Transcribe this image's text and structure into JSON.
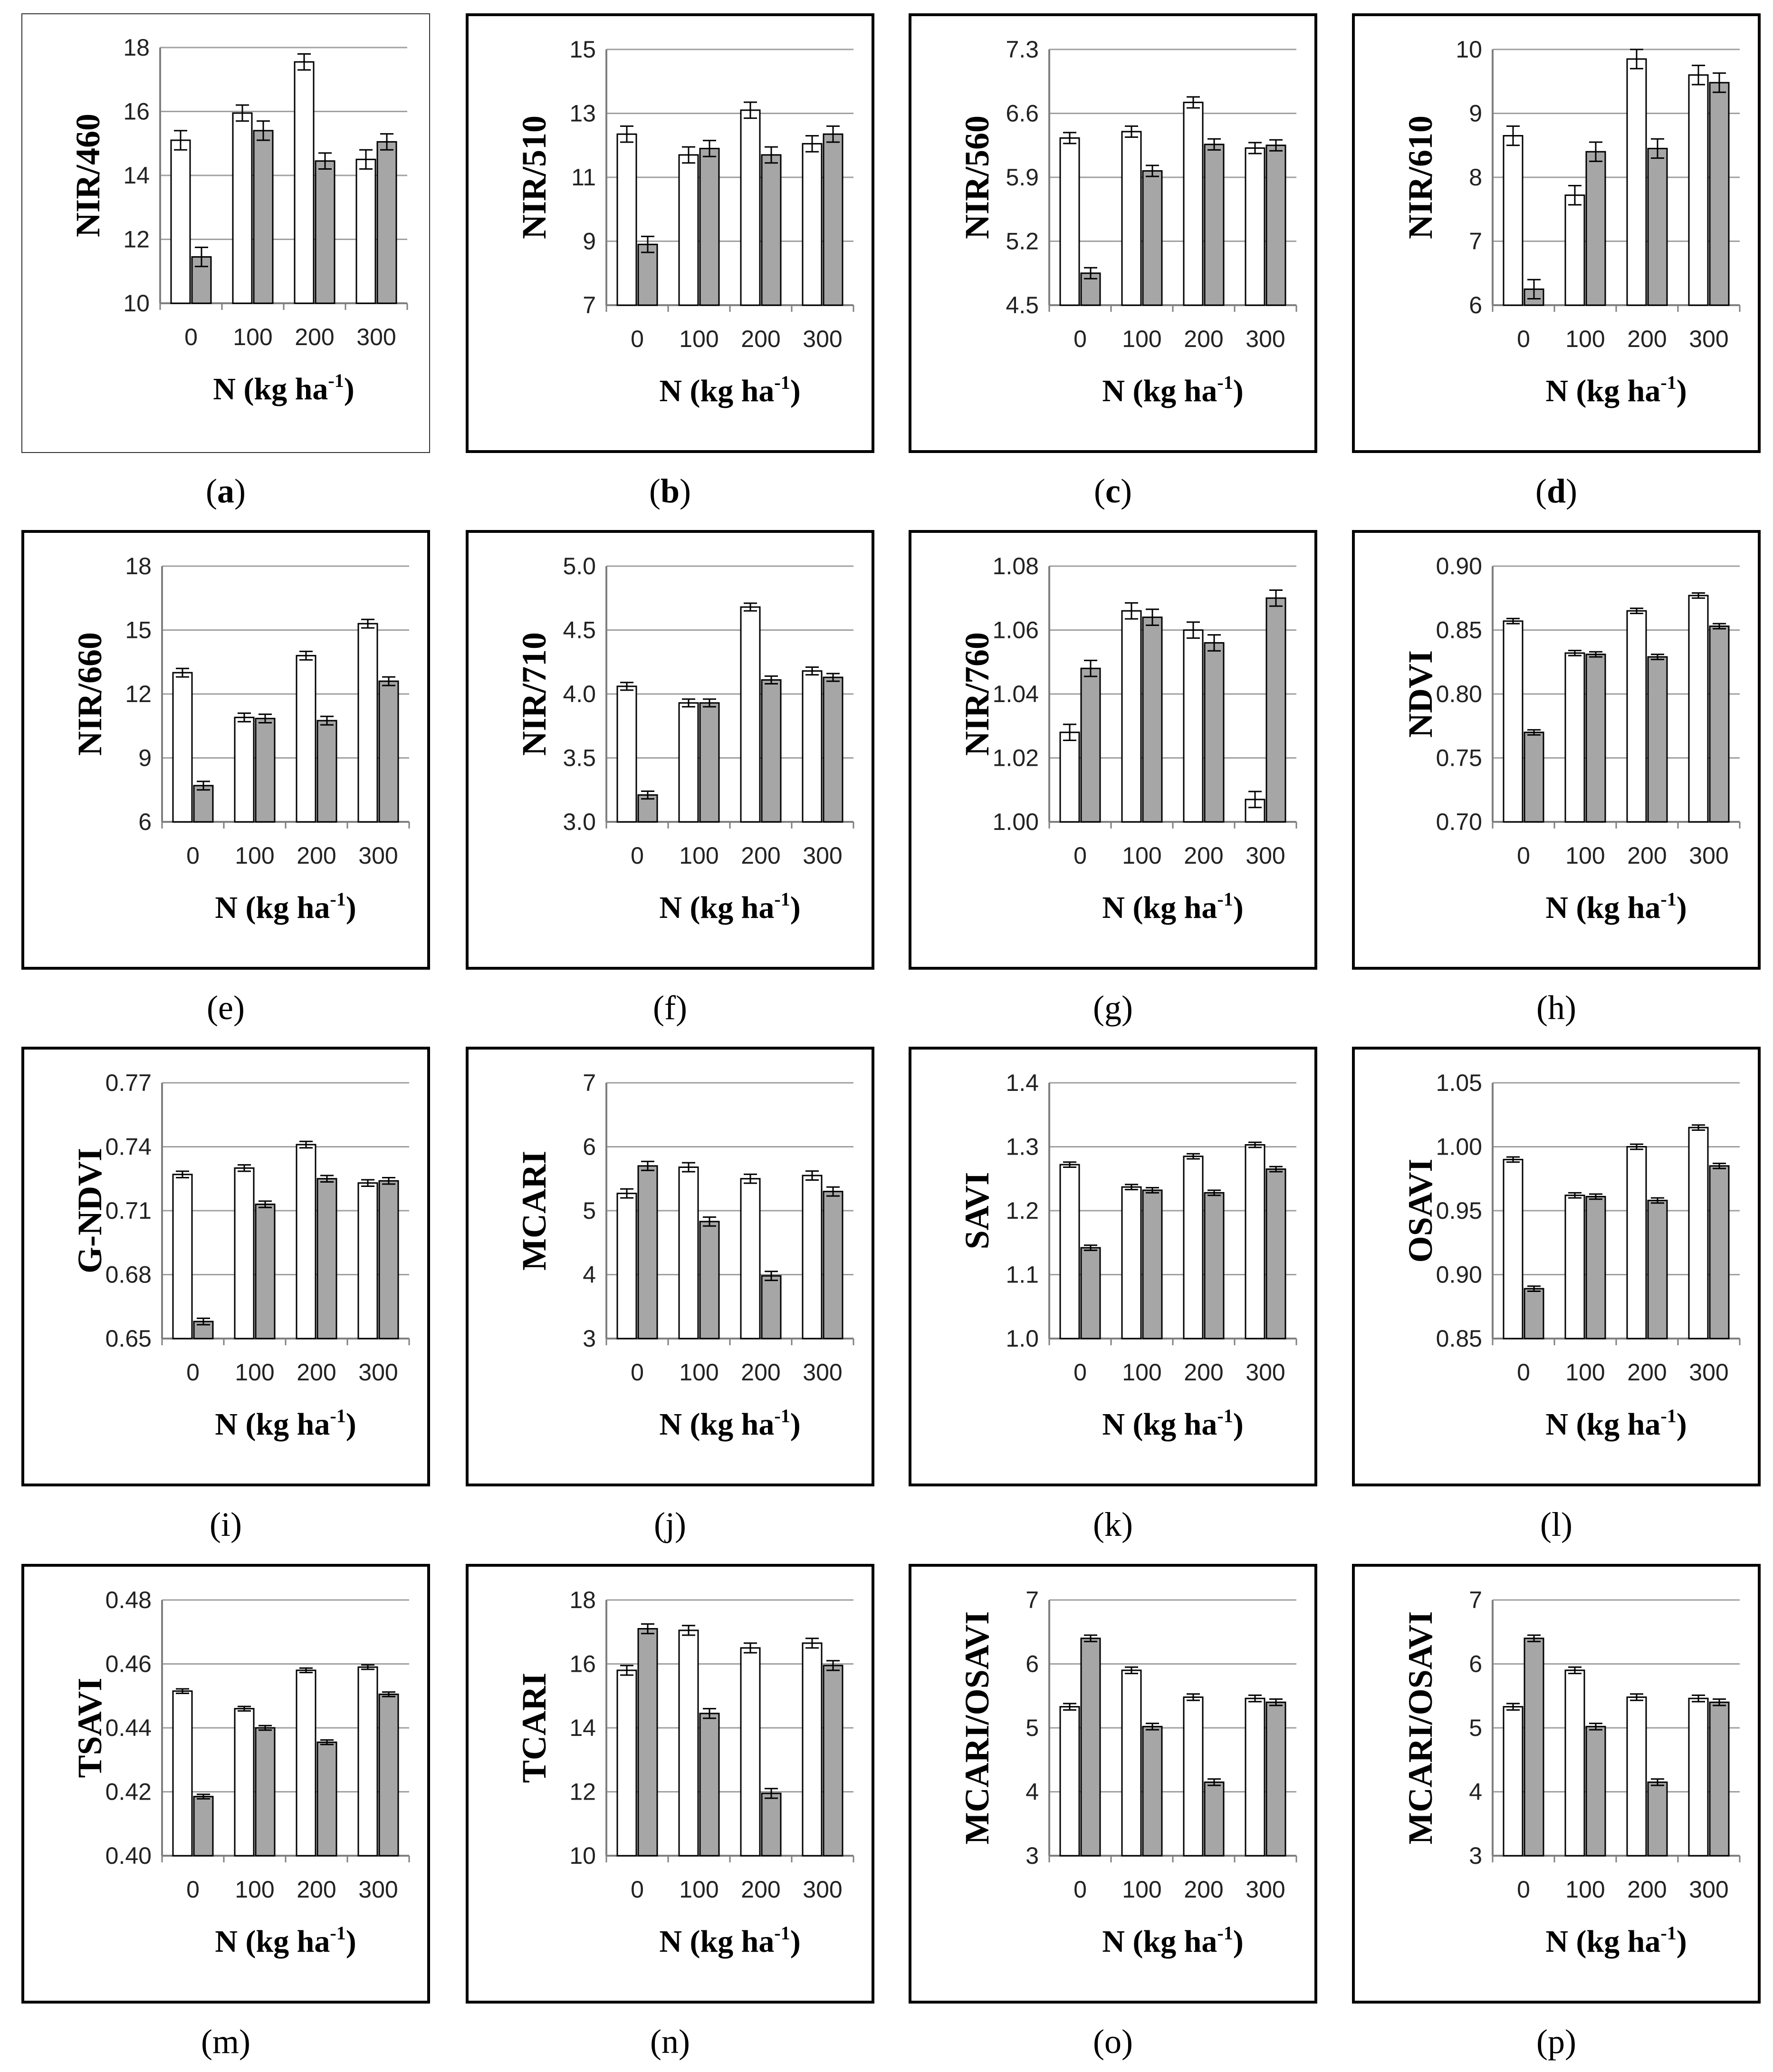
{
  "chart_data": [
    {
      "id": "a",
      "type": "bar",
      "caption": "a",
      "caption_bold": true,
      "thin_frame": true,
      "ylabel": "NIR/460",
      "xlabel": "N (kg ha",
      "xlabel_sup": "-1",
      "xlabel_close": ")",
      "categories": [
        "0",
        "100",
        "200",
        "300"
      ],
      "yticks": [
        "10",
        "12",
        "14",
        "16",
        "18"
      ],
      "ylim": [
        10,
        18
      ],
      "series": [
        {
          "name": "white",
          "color": "#ffffff",
          "values": [
            15.1,
            15.95,
            17.55,
            14.5
          ],
          "errors": [
            0.3,
            0.25,
            0.25,
            0.3
          ]
        },
        {
          "name": "gray",
          "color": "#a6a6a6",
          "values": [
            11.45,
            15.4,
            14.45,
            15.05
          ],
          "errors": [
            0.3,
            0.3,
            0.25,
            0.25
          ]
        }
      ]
    },
    {
      "id": "b",
      "type": "bar",
      "caption": "b",
      "caption_bold": true,
      "thin_frame": false,
      "ylabel": "NIR/510",
      "xlabel": "N (kg ha",
      "xlabel_sup": "-1",
      "xlabel_close": ")",
      "categories": [
        "0",
        "100",
        "200",
        "300"
      ],
      "yticks": [
        "7",
        "9",
        "11",
        "13",
        "15"
      ],
      "ylim": [
        7,
        15
      ],
      "series": [
        {
          "name": "white",
          "color": "#ffffff",
          "values": [
            12.35,
            11.7,
            13.1,
            12.05
          ],
          "errors": [
            0.25,
            0.25,
            0.25,
            0.25
          ]
        },
        {
          "name": "gray",
          "color": "#a6a6a6",
          "values": [
            8.9,
            11.9,
            11.7,
            12.35
          ],
          "errors": [
            0.25,
            0.25,
            0.25,
            0.25
          ]
        }
      ]
    },
    {
      "id": "c",
      "type": "bar",
      "caption": "c",
      "caption_bold": true,
      "thin_frame": false,
      "ylabel": "NIR/560",
      "xlabel": "N (kg ha",
      "xlabel_sup": "-1",
      "xlabel_close": ")",
      "categories": [
        "0",
        "100",
        "200",
        "300"
      ],
      "yticks": [
        "4.5",
        "5.2",
        "5.9",
        "6.6",
        "7.3"
      ],
      "ylim": [
        4.5,
        7.3
      ],
      "series": [
        {
          "name": "white",
          "color": "#ffffff",
          "values": [
            6.33,
            6.4,
            6.72,
            6.22
          ],
          "errors": [
            0.06,
            0.06,
            0.06,
            0.06
          ]
        },
        {
          "name": "gray",
          "color": "#a6a6a6",
          "values": [
            4.85,
            5.97,
            6.26,
            6.25
          ],
          "errors": [
            0.06,
            0.06,
            0.06,
            0.06
          ]
        }
      ]
    },
    {
      "id": "d",
      "type": "bar",
      "caption": "d",
      "caption_bold": true,
      "thin_frame": false,
      "ylabel": "NIR/610",
      "xlabel": "N (kg ha",
      "xlabel_sup": "-1",
      "xlabel_close": ")",
      "categories": [
        "0",
        "100",
        "200",
        "300"
      ],
      "yticks": [
        "6",
        "7",
        "8",
        "9",
        "10"
      ],
      "ylim": [
        6,
        10
      ],
      "series": [
        {
          "name": "white",
          "color": "#ffffff",
          "values": [
            8.65,
            7.72,
            9.85,
            9.6
          ],
          "errors": [
            0.15,
            0.15,
            0.15,
            0.15
          ]
        },
        {
          "name": "gray",
          "color": "#a6a6a6",
          "values": [
            6.25,
            8.4,
            8.45,
            9.48
          ],
          "errors": [
            0.15,
            0.15,
            0.15,
            0.15
          ]
        }
      ]
    },
    {
      "id": "e",
      "type": "bar",
      "caption": "e",
      "caption_bold": false,
      "thin_frame": false,
      "ylabel": "NIR/660",
      "xlabel": "N (kg ha",
      "xlabel_sup": "-1",
      "xlabel_close": ")",
      "categories": [
        "0",
        "100",
        "200",
        "300"
      ],
      "yticks": [
        "6",
        "9",
        "12",
        "15",
        "18"
      ],
      "ylim": [
        6,
        18
      ],
      "series": [
        {
          "name": "white",
          "color": "#ffffff",
          "values": [
            13.0,
            10.9,
            13.8,
            15.3
          ],
          "errors": [
            0.2,
            0.2,
            0.2,
            0.2
          ]
        },
        {
          "name": "gray",
          "color": "#a6a6a6",
          "values": [
            7.7,
            10.85,
            10.75,
            12.6
          ],
          "errors": [
            0.2,
            0.2,
            0.2,
            0.2
          ]
        }
      ]
    },
    {
      "id": "f",
      "type": "bar",
      "caption": "f",
      "caption_bold": false,
      "thin_frame": false,
      "ylabel": "NIR/710",
      "xlabel": "N (kg ha",
      "xlabel_sup": "-1",
      "xlabel_close": ")",
      "categories": [
        "0",
        "100",
        "200",
        "300"
      ],
      "yticks": [
        "3.0",
        "3.5",
        "4.0",
        "4.5",
        "5.0"
      ],
      "ylim": [
        3,
        5
      ],
      "series": [
        {
          "name": "white",
          "color": "#ffffff",
          "values": [
            4.06,
            3.93,
            4.68,
            4.18
          ],
          "errors": [
            0.03,
            0.03,
            0.03,
            0.03
          ]
        },
        {
          "name": "gray",
          "color": "#a6a6a6",
          "values": [
            3.21,
            3.93,
            4.11,
            4.13
          ],
          "errors": [
            0.03,
            0.03,
            0.03,
            0.03
          ]
        }
      ]
    },
    {
      "id": "g",
      "type": "bar",
      "caption": "g",
      "caption_bold": false,
      "thin_frame": false,
      "ylabel": "NIR/760",
      "xlabel": "N (kg ha",
      "xlabel_sup": "-1",
      "xlabel_close": ")",
      "categories": [
        "0",
        "100",
        "200",
        "300"
      ],
      "yticks": [
        "1.00",
        "1.02",
        "1.04",
        "1.06",
        "1.08"
      ],
      "ylim": [
        1.0,
        1.08
      ],
      "series": [
        {
          "name": "white",
          "color": "#ffffff",
          "values": [
            1.028,
            1.066,
            1.06,
            1.007
          ],
          "errors": [
            0.0025,
            0.0025,
            0.0025,
            0.0025
          ]
        },
        {
          "name": "gray",
          "color": "#a6a6a6",
          "values": [
            1.048,
            1.064,
            1.056,
            1.07
          ],
          "errors": [
            0.0025,
            0.0025,
            0.0025,
            0.0025
          ]
        }
      ]
    },
    {
      "id": "h",
      "type": "bar",
      "caption": "h",
      "caption_bold": false,
      "thin_frame": false,
      "ylabel": "NDVI",
      "xlabel": "N (kg ha",
      "xlabel_sup": "-1",
      "xlabel_close": ")",
      "categories": [
        "0",
        "100",
        "200",
        "300"
      ],
      "yticks": [
        "0.70",
        "0.75",
        "0.80",
        "0.85",
        "0.90"
      ],
      "ylim": [
        0.7,
        0.9
      ],
      "series": [
        {
          "name": "white",
          "color": "#ffffff",
          "values": [
            0.857,
            0.832,
            0.865,
            0.877
          ],
          "errors": [
            0.002,
            0.002,
            0.002,
            0.002
          ]
        },
        {
          "name": "gray",
          "color": "#a6a6a6",
          "values": [
            0.77,
            0.831,
            0.829,
            0.853
          ],
          "errors": [
            0.002,
            0.002,
            0.002,
            0.002
          ]
        }
      ]
    },
    {
      "id": "i",
      "type": "bar",
      "caption": "i",
      "caption_bold": false,
      "thin_frame": false,
      "ylabel": "G-NDVI",
      "xlabel": "N (kg ha",
      "xlabel_sup": "-1",
      "xlabel_close": ")",
      "categories": [
        "0",
        "100",
        "200",
        "300"
      ],
      "yticks": [
        "0.65",
        "0.68",
        "0.71",
        "0.74",
        "0.77"
      ],
      "ylim": [
        0.65,
        0.77
      ],
      "series": [
        {
          "name": "white",
          "color": "#ffffff",
          "values": [
            0.727,
            0.73,
            0.741,
            0.723
          ],
          "errors": [
            0.0015,
            0.0015,
            0.0015,
            0.0015
          ]
        },
        {
          "name": "gray",
          "color": "#a6a6a6",
          "values": [
            0.658,
            0.713,
            0.725,
            0.724
          ],
          "errors": [
            0.0015,
            0.0015,
            0.0015,
            0.0015
          ]
        }
      ]
    },
    {
      "id": "j",
      "type": "bar",
      "caption": "j",
      "caption_bold": false,
      "thin_frame": false,
      "ylabel": "MCARI",
      "xlabel": "N (kg ha",
      "xlabel_sup": "-1",
      "xlabel_close": ")",
      "categories": [
        "0",
        "100",
        "200",
        "300"
      ],
      "yticks": [
        "3",
        "4",
        "5",
        "6",
        "7"
      ],
      "ylim": [
        3,
        7
      ],
      "series": [
        {
          "name": "white",
          "color": "#ffffff",
          "values": [
            5.27,
            5.68,
            5.5,
            5.55
          ],
          "errors": [
            0.07,
            0.07,
            0.07,
            0.07
          ]
        },
        {
          "name": "gray",
          "color": "#a6a6a6",
          "values": [
            5.7,
            4.83,
            3.98,
            5.3
          ],
          "errors": [
            0.07,
            0.07,
            0.07,
            0.07
          ]
        }
      ]
    },
    {
      "id": "k",
      "type": "bar",
      "caption": "k",
      "caption_bold": false,
      "thin_frame": false,
      "ylabel": "SAVI",
      "xlabel": "N (kg ha",
      "xlabel_sup": "-1",
      "xlabel_close": ")",
      "categories": [
        "0",
        "100",
        "200",
        "300"
      ],
      "yticks": [
        "1.0",
        "1.1",
        "1.2",
        "1.3",
        "1.4"
      ],
      "ylim": [
        1.0,
        1.4
      ],
      "series": [
        {
          "name": "white",
          "color": "#ffffff",
          "values": [
            1.272,
            1.237,
            1.285,
            1.303
          ],
          "errors": [
            0.004,
            0.004,
            0.004,
            0.004
          ]
        },
        {
          "name": "gray",
          "color": "#a6a6a6",
          "values": [
            1.142,
            1.232,
            1.228,
            1.265
          ],
          "errors": [
            0.004,
            0.004,
            0.004,
            0.004
          ]
        }
      ]
    },
    {
      "id": "l",
      "type": "bar",
      "caption": "l",
      "caption_bold": false,
      "thin_frame": false,
      "ylabel": "OSAVI",
      "xlabel": "N (kg ha",
      "xlabel_sup": "-1",
      "xlabel_close": ")",
      "categories": [
        "0",
        "100",
        "200",
        "300"
      ],
      "yticks": [
        "0.85",
        "0.90",
        "0.95",
        "1.00",
        "1.05"
      ],
      "ylim": [
        0.85,
        1.05
      ],
      "series": [
        {
          "name": "white",
          "color": "#ffffff",
          "values": [
            0.99,
            0.962,
            1.0,
            1.015
          ],
          "errors": [
            0.002,
            0.002,
            0.002,
            0.002
          ]
        },
        {
          "name": "gray",
          "color": "#a6a6a6",
          "values": [
            0.889,
            0.961,
            0.958,
            0.985
          ],
          "errors": [
            0.002,
            0.002,
            0.002,
            0.002
          ]
        }
      ]
    },
    {
      "id": "m",
      "type": "bar",
      "caption": "m",
      "caption_bold": false,
      "thin_frame": false,
      "ylabel": "TSAVI",
      "xlabel": "N (kg ha",
      "xlabel_sup": "-1",
      "xlabel_close": ")",
      "categories": [
        "0",
        "100",
        "200",
        "300"
      ],
      "yticks": [
        "0.40",
        "0.42",
        "0.44",
        "0.46",
        "0.48"
      ],
      "ylim": [
        0.4,
        0.48
      ],
      "series": [
        {
          "name": "white",
          "color": "#ffffff",
          "values": [
            0.4515,
            0.446,
            0.458,
            0.459
          ],
          "errors": [
            0.0007,
            0.0007,
            0.0007,
            0.0007
          ]
        },
        {
          "name": "gray",
          "color": "#a6a6a6",
          "values": [
            0.4185,
            0.44,
            0.4355,
            0.4505
          ],
          "errors": [
            0.0007,
            0.0007,
            0.0007,
            0.0007
          ]
        }
      ]
    },
    {
      "id": "n",
      "type": "bar",
      "caption": "n",
      "caption_bold": false,
      "thin_frame": false,
      "ylabel": "TCARI",
      "xlabel": "N (kg ha",
      "xlabel_sup": "-1",
      "xlabel_close": ")",
      "categories": [
        "0",
        "100",
        "200",
        "300"
      ],
      "yticks": [
        "10",
        "12",
        "14",
        "16",
        "18"
      ],
      "ylim": [
        10,
        18
      ],
      "series": [
        {
          "name": "white",
          "color": "#ffffff",
          "values": [
            15.8,
            17.05,
            16.5,
            16.65
          ],
          "errors": [
            0.15,
            0.15,
            0.15,
            0.15
          ]
        },
        {
          "name": "gray",
          "color": "#a6a6a6",
          "values": [
            17.1,
            14.45,
            11.95,
            15.95
          ],
          "errors": [
            0.15,
            0.15,
            0.15,
            0.15
          ]
        }
      ]
    },
    {
      "id": "o",
      "type": "bar",
      "caption": "o",
      "caption_bold": false,
      "thin_frame": false,
      "ylabel": "MCARI/OSAVI",
      "xlabel": "N (kg ha",
      "xlabel_sup": "-1",
      "xlabel_close": ")",
      "categories": [
        "0",
        "100",
        "200",
        "300"
      ],
      "yticks": [
        "3",
        "4",
        "5",
        "6",
        "7"
      ],
      "ylim": [
        3,
        7
      ],
      "series": [
        {
          "name": "white",
          "color": "#ffffff",
          "values": [
            5.33,
            5.9,
            5.48,
            5.46
          ],
          "errors": [
            0.05,
            0.05,
            0.05,
            0.05
          ]
        },
        {
          "name": "gray",
          "color": "#a6a6a6",
          "values": [
            6.4,
            5.02,
            4.15,
            5.4
          ],
          "errors": [
            0.05,
            0.05,
            0.05,
            0.05
          ]
        }
      ]
    },
    {
      "id": "p",
      "type": "bar",
      "caption": "p",
      "caption_bold": false,
      "thin_frame": false,
      "ylabel": "MCARI/OSAVI",
      "xlabel": "N (kg ha",
      "xlabel_sup": "-1",
      "xlabel_close": ")",
      "categories": [
        "0",
        "100",
        "200",
        "300"
      ],
      "yticks": [
        "3",
        "4",
        "5",
        "6",
        "7"
      ],
      "ylim": [
        3,
        7
      ],
      "series": [
        {
          "name": "white",
          "color": "#ffffff",
          "values": [
            5.33,
            5.9,
            5.48,
            5.46
          ],
          "errors": [
            0.05,
            0.05,
            0.05,
            0.05
          ]
        },
        {
          "name": "gray",
          "color": "#a6a6a6",
          "values": [
            6.4,
            5.02,
            4.15,
            5.4
          ],
          "errors": [
            0.05,
            0.05,
            0.05,
            0.05
          ]
        }
      ]
    }
  ],
  "colors": {
    "frame": "#000000",
    "grid": "#a0a0a0",
    "axis": "#7f7f7f",
    "bar_edge": "#000000"
  }
}
